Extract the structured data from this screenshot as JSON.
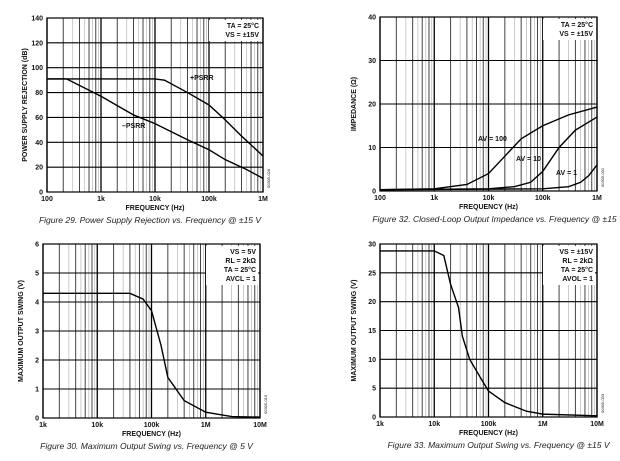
{
  "chart_data": [
    {
      "type": "line",
      "title": "",
      "caption": "Figure 29. Power Supply Rejection vs. Frequency @ ±15 V",
      "xlabel": "FREQUENCY (Hz)",
      "ylabel": "POWER SUPPLY REJECTION (dB)",
      "xscale": "log",
      "xlim": [
        100,
        1000000
      ],
      "ylim": [
        0,
        140
      ],
      "xticks": [
        "100",
        "1k",
        "10k",
        "100k",
        "1M"
      ],
      "yticks": [
        "0",
        "20",
        "40",
        "60",
        "80",
        "100",
        "120",
        "140"
      ],
      "grid": true,
      "conditions": [
        "TA = 25°C",
        "VS = ±15V"
      ],
      "code": "00305-028",
      "series": [
        {
          "name": "+PSRR",
          "x": [
            100,
            10000,
            15000,
            40000,
            100000,
            200000,
            400000,
            1000000
          ],
          "y": [
            91,
            91,
            90,
            80,
            70,
            58,
            45,
            29
          ]
        },
        {
          "name": "–PSRR",
          "x": [
            100,
            230,
            1000,
            4000,
            10000,
            40000,
            100000,
            200000,
            500000,
            1000000
          ],
          "y": [
            91,
            91,
            77,
            62,
            55,
            42,
            34,
            26,
            18,
            11
          ]
        }
      ]
    },
    {
      "type": "line",
      "title": "",
      "caption": "Figure 32. Closed-Loop Output Impedance vs. Frequency @ ±15 V",
      "xlabel": "FREQUENCY (Hz)",
      "ylabel": "IMPEDANCE (Ω)",
      "xscale": "log",
      "xlim": [
        100,
        1000000
      ],
      "ylim": [
        0,
        40
      ],
      "xticks": [
        "100",
        "1k",
        "10k",
        "100k",
        "1M"
      ],
      "yticks": [
        "0",
        "10",
        "20",
        "30",
        "40"
      ],
      "grid": true,
      "conditions": [
        "TA = 25°C",
        "VS = ±15V"
      ],
      "code": "00305-031",
      "series": [
        {
          "name": "AV = 100",
          "x": [
            100,
            1000,
            4000,
            10000,
            20000,
            40000,
            100000,
            300000,
            1000000
          ],
          "y": [
            0.3,
            0.5,
            1.5,
            4,
            8,
            12,
            15,
            17.5,
            19.3
          ]
        },
        {
          "name": "AV = 10",
          "x": [
            100,
            10000,
            30000,
            60000,
            100000,
            200000,
            400000,
            1000000
          ],
          "y": [
            0.3,
            0.5,
            1,
            2,
            4.5,
            10,
            14,
            17
          ]
        },
        {
          "name": "AV = 1",
          "x": [
            100,
            100000,
            300000,
            500000,
            700000,
            1000000
          ],
          "y": [
            0.3,
            0.5,
            1,
            2,
            3.5,
            6
          ]
        }
      ]
    },
    {
      "type": "line",
      "title": "",
      "caption": "Figure 30. Maximum Output Swing vs. Frequency @ 5 V",
      "xlabel": "FREQUENCY (Hz)",
      "ylabel": "MAXIMUM OUTPUT SWING (V)",
      "xscale": "log",
      "xlim": [
        1000,
        10000000
      ],
      "ylim": [
        0,
        6
      ],
      "xticks": [
        "1k",
        "10k",
        "100k",
        "1M",
        "10M"
      ],
      "yticks": [
        "0",
        "1",
        "2",
        "3",
        "4",
        "5",
        "6"
      ],
      "grid": true,
      "conditions": [
        "VS = 5V",
        "RL = 2kΩ",
        "TA = 25°C",
        "AVCL = 1"
      ],
      "code": "00305-010",
      "series": [
        {
          "x": [
            1000,
            40000,
            70000,
            100000,
            150000,
            200000,
            400000,
            1000000,
            3000000,
            10000000
          ],
          "y": [
            4.3,
            4.3,
            4.1,
            3.7,
            2.5,
            1.4,
            0.6,
            0.2,
            0.05,
            0.03
          ]
        }
      ]
    },
    {
      "type": "line",
      "title": "",
      "caption": "Figure 33. Maximum Output Swing vs. Frequency @ ±15 V",
      "xlabel": "FREQUENCY (Hz)",
      "ylabel": "MAXIMUM OUTPUT SWING (V)",
      "xscale": "log",
      "xlim": [
        1000,
        10000000
      ],
      "ylim": [
        0,
        30
      ],
      "xticks": [
        "1k",
        "10k",
        "100k",
        "1M",
        "10M"
      ],
      "yticks": [
        "0",
        "5",
        "10",
        "15",
        "20",
        "25",
        "30"
      ],
      "grid": true,
      "conditions": [
        "VS = ±15V",
        "RL = 2kΩ",
        "TA = 25°C",
        "AVOL = 1"
      ],
      "code": "00305-033",
      "series": [
        {
          "x": [
            1000,
            10000,
            15000,
            20000,
            28000,
            33000,
            45000,
            80000,
            100000,
            200000,
            500000,
            1000000,
            10000000
          ],
          "y": [
            28.8,
            28.8,
            28,
            23,
            19,
            14,
            10,
            6,
            4.5,
            2.5,
            1,
            0.5,
            0.2
          ]
        }
      ]
    }
  ]
}
